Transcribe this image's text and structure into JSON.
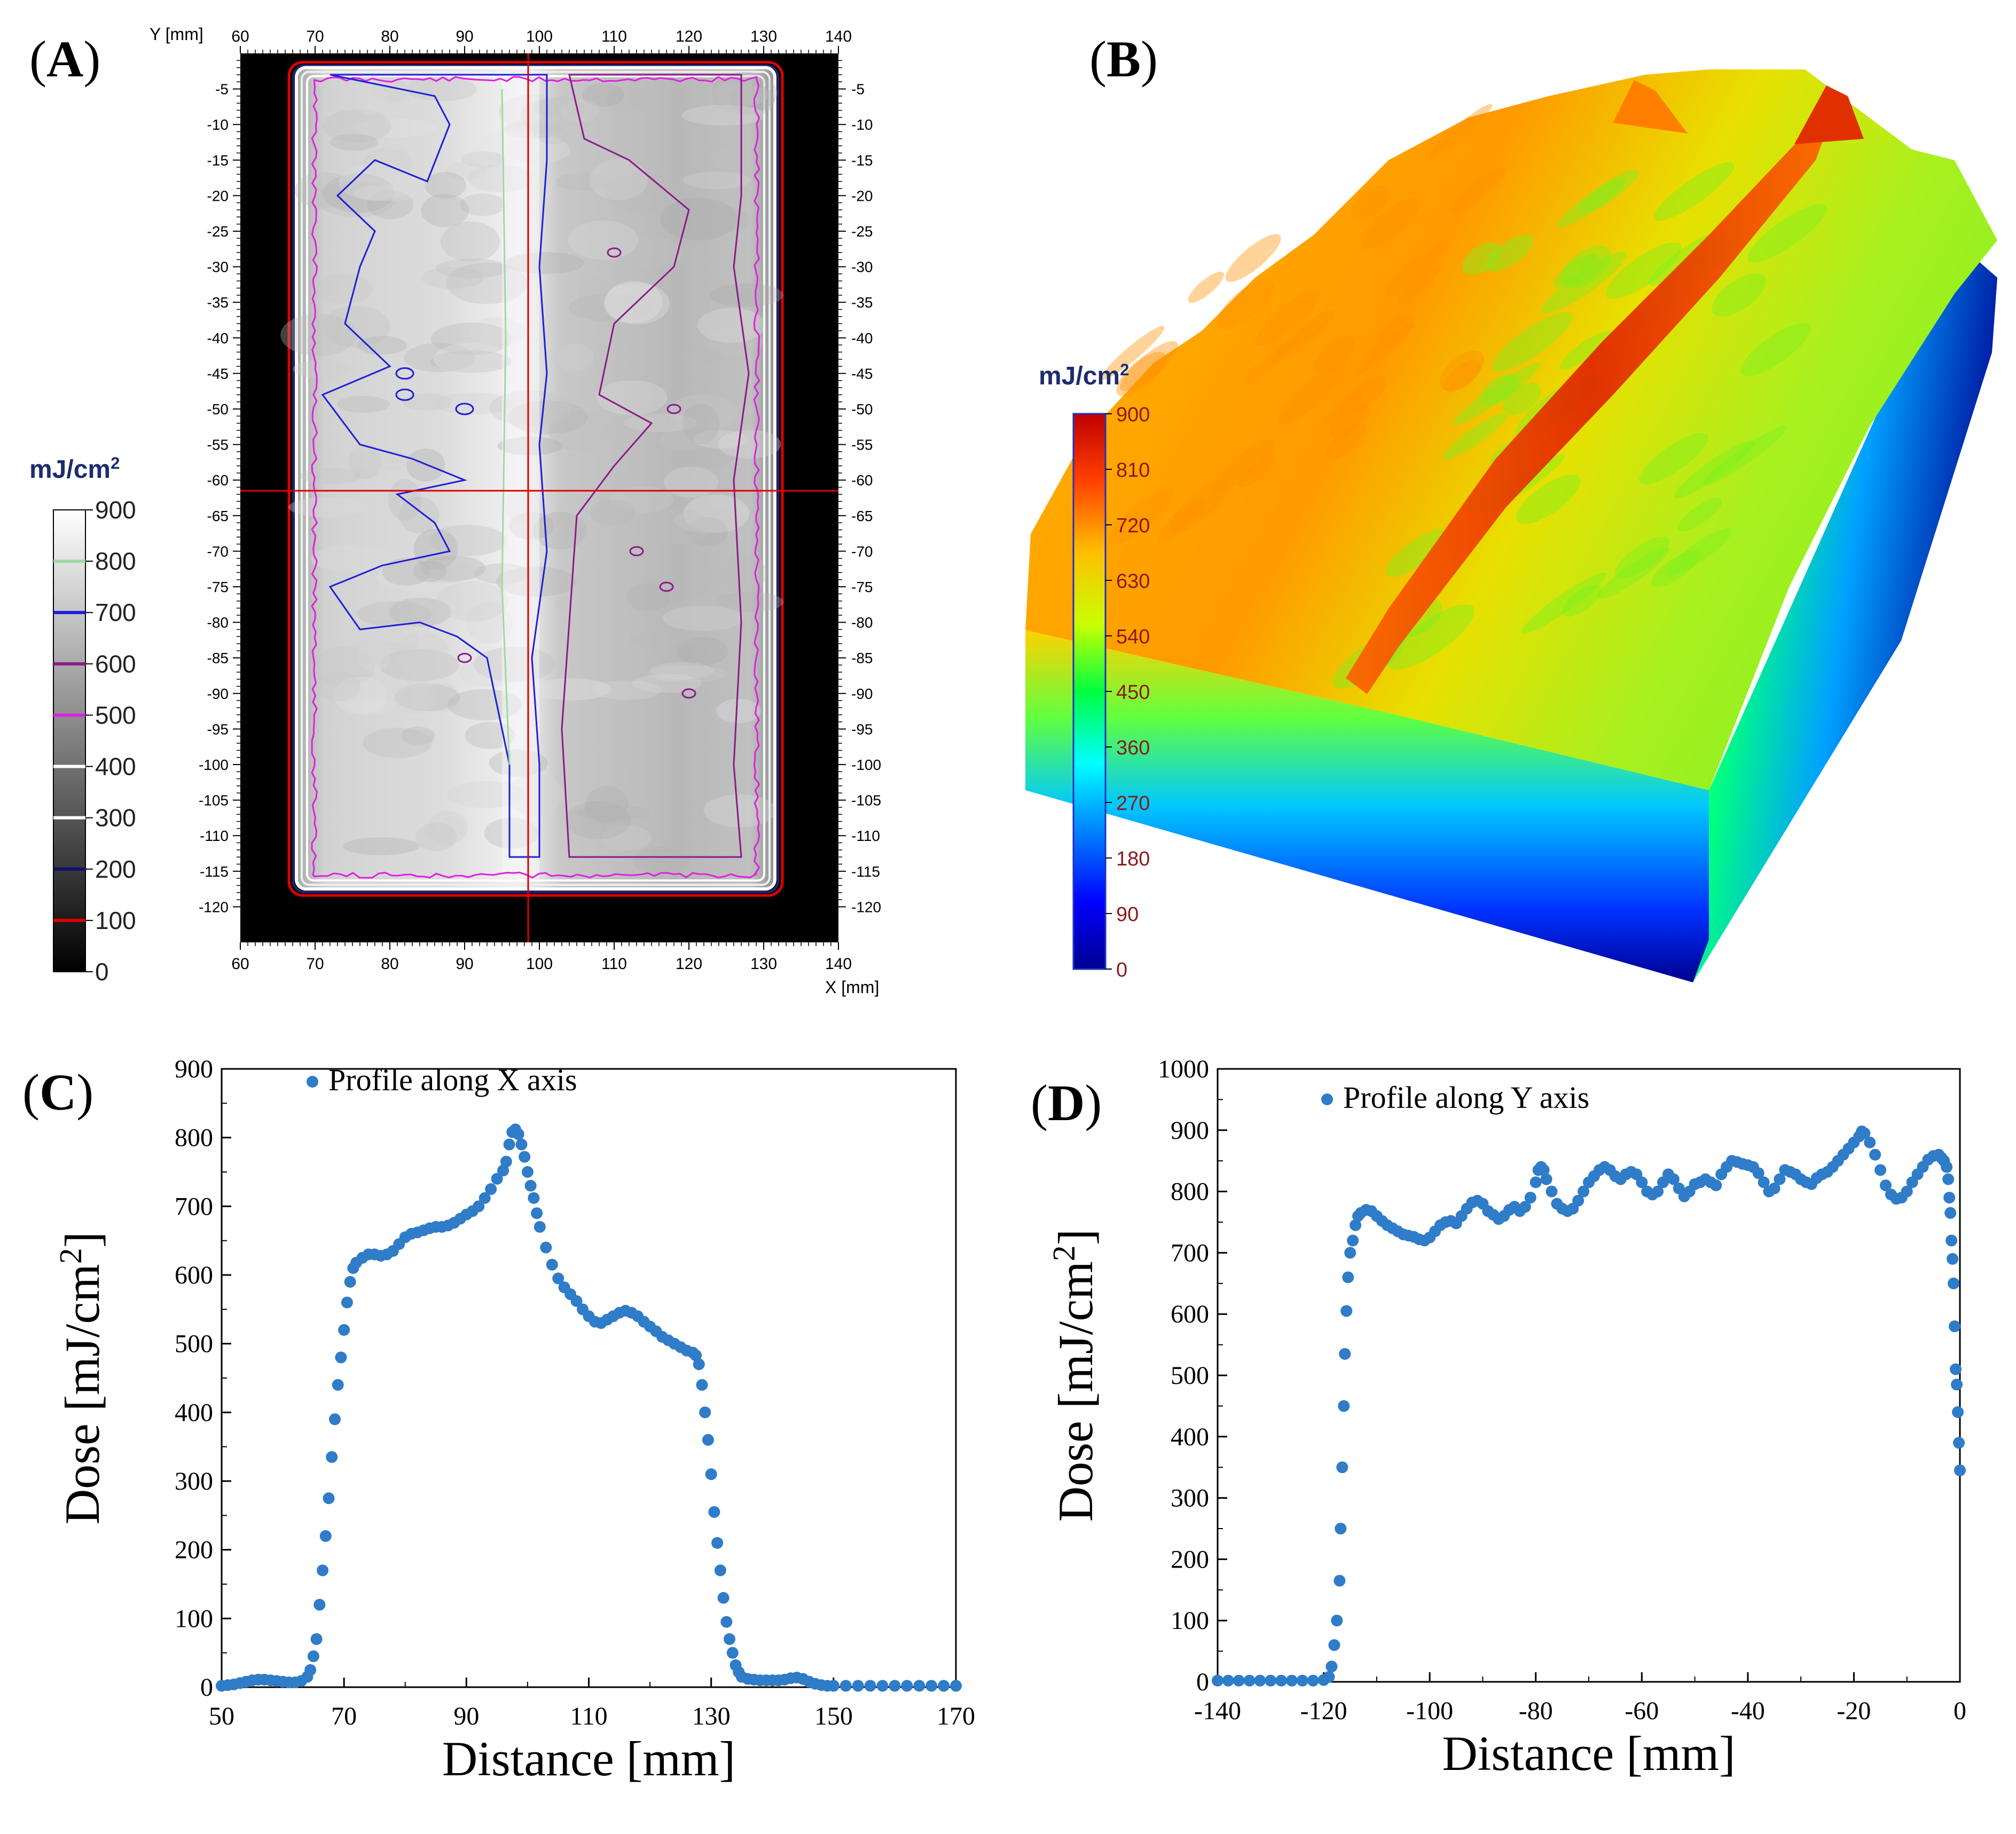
{
  "panel_labels": {
    "a": "A",
    "b": "B",
    "c": "C",
    "d": "D"
  },
  "colors": {
    "marker": "#2F7CC8",
    "contour_blue": "#1E1ED8",
    "contour_purple": "#8B1A8B",
    "contour_magenta": "#E020E0",
    "contour_red": "#E00000",
    "crosshair": "#E00000",
    "unit_label": "#1E2C6E",
    "scale_tick_text": "#8B1A1A"
  },
  "chart_data": [
    {
      "type": "heatmap",
      "panel": "A",
      "description_free": true,
      "y_axis_label": "Y [mm]",
      "x_axis_label": "X [mm]",
      "x_ticks": [
        "60",
        "70",
        "80",
        "90",
        "100",
        "110",
        "120",
        "130",
        "140"
      ],
      "y_ticks": [
        "-5",
        "-10",
        "-15",
        "-20",
        "-25",
        "-30",
        "-35",
        "-40",
        "-45",
        "-50",
        "-55",
        "-60",
        "-65",
        "-70",
        "-75",
        "-80",
        "-85",
        "-90",
        "-95",
        "-100",
        "-105",
        "-110",
        "-115",
        "-120"
      ],
      "xlim": [
        60,
        140
      ],
      "ylim": [
        -125,
        0
      ],
      "field_x": [
        67.5,
        131.5
      ],
      "field_y": [
        -2,
        -117.5
      ],
      "crosshair": {
        "x": 98.5,
        "y": -61.5
      },
      "colorbar": {
        "unit": "mJ/cm²",
        "ticks": [
          "900",
          "800",
          "700",
          "600",
          "500",
          "400",
          "300",
          "200",
          "100",
          "0"
        ],
        "levels": [
          {
            "value": 800,
            "color": "#9fd8a4"
          },
          {
            "value": 700,
            "color": "#1e1ed8"
          },
          {
            "value": 600,
            "color": "#8b1a8b"
          },
          {
            "value": 500,
            "color": "#e020e0"
          },
          {
            "value": 400,
            "color": "#ffffff"
          },
          {
            "value": 300,
            "color": "#ffffff"
          },
          {
            "value": 200,
            "color": "#101070"
          },
          {
            "value": 100,
            "color": "#e00000"
          }
        ]
      }
    },
    {
      "type": "surface",
      "panel": "B",
      "colorbar": {
        "unit": "mJ/cm²",
        "ticks": [
          "900",
          "810",
          "720",
          "630",
          "540",
          "450",
          "360",
          "270",
          "180",
          "90",
          "0"
        ],
        "range": [
          0,
          900
        ]
      }
    },
    {
      "type": "scatter",
      "panel": "C",
      "legend": "Profile along X axis",
      "xlabel": "Distance [mm]",
      "ylabel": "Dose [mJ/cm²]",
      "xlim": [
        50,
        170
      ],
      "ylim": [
        0,
        900
      ],
      "x_ticks": [
        50,
        70,
        90,
        110,
        130,
        150,
        170
      ],
      "y_ticks": [
        0,
        100,
        200,
        300,
        400,
        500,
        600,
        700,
        800,
        900
      ],
      "points": [
        [
          50,
          2
        ],
        [
          51,
          3
        ],
        [
          52,
          4
        ],
        [
          53,
          6
        ],
        [
          54,
          8
        ],
        [
          55,
          10
        ],
        [
          56,
          11
        ],
        [
          57,
          11
        ],
        [
          58,
          10
        ],
        [
          59,
          9
        ],
        [
          60,
          8
        ],
        [
          61,
          7
        ],
        [
          62,
          7
        ],
        [
          63,
          9
        ],
        [
          64,
          15
        ],
        [
          64.5,
          25
        ],
        [
          65,
          45
        ],
        [
          65.5,
          70
        ],
        [
          66,
          120
        ],
        [
          66.5,
          170
        ],
        [
          67,
          220
        ],
        [
          67.5,
          275
        ],
        [
          68,
          335
        ],
        [
          68.5,
          390
        ],
        [
          69,
          440
        ],
        [
          69.5,
          480
        ],
        [
          70,
          520
        ],
        [
          70.5,
          560
        ],
        [
          71,
          590
        ],
        [
          71.5,
          610
        ],
        [
          72,
          618
        ],
        [
          73,
          625
        ],
        [
          74,
          630
        ],
        [
          75,
          630
        ],
        [
          76,
          628
        ],
        [
          77,
          630
        ],
        [
          78,
          635
        ],
        [
          79,
          645
        ],
        [
          80,
          655
        ],
        [
          81,
          660
        ],
        [
          82,
          662
        ],
        [
          83,
          665
        ],
        [
          84,
          668
        ],
        [
          85,
          670
        ],
        [
          86,
          670
        ],
        [
          87,
          672
        ],
        [
          88,
          676
        ],
        [
          89,
          682
        ],
        [
          90,
          688
        ],
        [
          91,
          693
        ],
        [
          92,
          700
        ],
        [
          93,
          712
        ],
        [
          94,
          725
        ],
        [
          95,
          740
        ],
        [
          96,
          752
        ],
        [
          96.5,
          765
        ],
        [
          97,
          790
        ],
        [
          97.5,
          808
        ],
        [
          98,
          812
        ],
        [
          98.5,
          805
        ],
        [
          99,
          790
        ],
        [
          99.5,
          772
        ],
        [
          100,
          750
        ],
        [
          100.5,
          730
        ],
        [
          101,
          712
        ],
        [
          101.5,
          690
        ],
        [
          102,
          670
        ],
        [
          103,
          640
        ],
        [
          104,
          615
        ],
        [
          105,
          595
        ],
        [
          106,
          582
        ],
        [
          107,
          572
        ],
        [
          108,
          562
        ],
        [
          109,
          550
        ],
        [
          110,
          540
        ],
        [
          111,
          532
        ],
        [
          112,
          530
        ],
        [
          113,
          535
        ],
        [
          114,
          540
        ],
        [
          115,
          545
        ],
        [
          116,
          548
        ],
        [
          117,
          545
        ],
        [
          118,
          540
        ],
        [
          119,
          532
        ],
        [
          120,
          525
        ],
        [
          121,
          518
        ],
        [
          122,
          510
        ],
        [
          123,
          505
        ],
        [
          124,
          500
        ],
        [
          125,
          495
        ],
        [
          126,
          490
        ],
        [
          127,
          487
        ],
        [
          127.5,
          483
        ],
        [
          128,
          470
        ],
        [
          128.5,
          440
        ],
        [
          129,
          400
        ],
        [
          129.5,
          360
        ],
        [
          130,
          310
        ],
        [
          130.5,
          255
        ],
        [
          131,
          210
        ],
        [
          131.5,
          170
        ],
        [
          132,
          130
        ],
        [
          132.5,
          95
        ],
        [
          133,
          70
        ],
        [
          133.5,
          50
        ],
        [
          134,
          32
        ],
        [
          134.5,
          22
        ],
        [
          135,
          15
        ],
        [
          136,
          12
        ],
        [
          137,
          11
        ],
        [
          138,
          10
        ],
        [
          139,
          10
        ],
        [
          140,
          10
        ],
        [
          141,
          10
        ],
        [
          142,
          11
        ],
        [
          143,
          13
        ],
        [
          144,
          14
        ],
        [
          145,
          12
        ],
        [
          146,
          8
        ],
        [
          147,
          5
        ],
        [
          148,
          3
        ],
        [
          149,
          2
        ],
        [
          150,
          2
        ],
        [
          152,
          2
        ],
        [
          154,
          2
        ],
        [
          156,
          2
        ],
        [
          158,
          2
        ],
        [
          160,
          2
        ],
        [
          162,
          2
        ],
        [
          164,
          2
        ],
        [
          166,
          2
        ],
        [
          168,
          2
        ],
        [
          170,
          2
        ]
      ]
    },
    {
      "type": "scatter",
      "panel": "D",
      "legend": "Profile along Y axis",
      "xlabel": "Distance [mm]",
      "ylabel": "Dose [mJ/cm²]",
      "xlim": [
        -140,
        0
      ],
      "ylim": [
        0,
        1000
      ],
      "x_ticks": [
        -140,
        -120,
        -100,
        -80,
        -60,
        -40,
        -20,
        0
      ],
      "y_ticks": [
        0,
        100,
        200,
        300,
        400,
        500,
        600,
        700,
        800,
        900,
        1000
      ],
      "points": [
        [
          -140,
          2
        ],
        [
          -138,
          2
        ],
        [
          -136,
          2
        ],
        [
          -134,
          2
        ],
        [
          -132,
          2
        ],
        [
          -130,
          2
        ],
        [
          -128,
          2
        ],
        [
          -126,
          2
        ],
        [
          -124,
          2
        ],
        [
          -122,
          2
        ],
        [
          -120,
          3
        ],
        [
          -119,
          8
        ],
        [
          -118.5,
          25
        ],
        [
          -118,
          60
        ],
        [
          -117.5,
          100
        ],
        [
          -117,
          165
        ],
        [
          -116.8,
          250
        ],
        [
          -116.5,
          350
        ],
        [
          -116.2,
          450
        ],
        [
          -116,
          535
        ],
        [
          -115.7,
          605
        ],
        [
          -115.4,
          660
        ],
        [
          -115,
          700
        ],
        [
          -114.5,
          720
        ],
        [
          -114,
          745
        ],
        [
          -113.5,
          760
        ],
        [
          -113,
          765
        ],
        [
          -112,
          770
        ],
        [
          -111,
          768
        ],
        [
          -110,
          760
        ],
        [
          -109,
          752
        ],
        [
          -108,
          745
        ],
        [
          -107,
          740
        ],
        [
          -106,
          735
        ],
        [
          -105,
          730
        ],
        [
          -104,
          728
        ],
        [
          -103,
          726
        ],
        [
          -102,
          722
        ],
        [
          -101,
          720
        ],
        [
          -100,
          725
        ],
        [
          -99,
          735
        ],
        [
          -98,
          745
        ],
        [
          -97,
          750
        ],
        [
          -96,
          752
        ],
        [
          -95,
          748
        ],
        [
          -94,
          760
        ],
        [
          -93,
          772
        ],
        [
          -92,
          782
        ],
        [
          -91,
          785
        ],
        [
          -90,
          780
        ],
        [
          -89,
          768
        ],
        [
          -88,
          762
        ],
        [
          -87,
          755
        ],
        [
          -86,
          760
        ],
        [
          -85,
          770
        ],
        [
          -84,
          775
        ],
        [
          -83,
          768
        ],
        [
          -82,
          775
        ],
        [
          -81,
          790
        ],
        [
          -80,
          815
        ],
        [
          -79.5,
          835
        ],
        [
          -79,
          840
        ],
        [
          -78.5,
          835
        ],
        [
          -78,
          820
        ],
        [
          -77,
          800
        ],
        [
          -76,
          780
        ],
        [
          -75,
          772
        ],
        [
          -74,
          768
        ],
        [
          -73,
          772
        ],
        [
          -72,
          785
        ],
        [
          -71,
          800
        ],
        [
          -70,
          815
        ],
        [
          -69,
          825
        ],
        [
          -68,
          835
        ],
        [
          -67,
          840
        ],
        [
          -66,
          835
        ],
        [
          -65,
          825
        ],
        [
          -64,
          820
        ],
        [
          -63,
          828
        ],
        [
          -62,
          832
        ],
        [
          -61,
          828
        ],
        [
          -60,
          815
        ],
        [
          -59,
          800
        ],
        [
          -58,
          795
        ],
        [
          -57,
          800
        ],
        [
          -56,
          815
        ],
        [
          -55,
          828
        ],
        [
          -54,
          820
        ],
        [
          -53,
          805
        ],
        [
          -52,
          792
        ],
        [
          -51,
          800
        ],
        [
          -50,
          812
        ],
        [
          -49,
          815
        ],
        [
          -48,
          820
        ],
        [
          -47,
          815
        ],
        [
          -46,
          810
        ],
        [
          -45,
          828
        ],
        [
          -44,
          840
        ],
        [
          -43,
          850
        ],
        [
          -42,
          848
        ],
        [
          -41,
          845
        ],
        [
          -40,
          843
        ],
        [
          -39,
          840
        ],
        [
          -38,
          830
        ],
        [
          -37,
          815
        ],
        [
          -36,
          800
        ],
        [
          -35,
          805
        ],
        [
          -34,
          820
        ],
        [
          -33,
          835
        ],
        [
          -32,
          832
        ],
        [
          -31,
          828
        ],
        [
          -30,
          820
        ],
        [
          -29,
          815
        ],
        [
          -28,
          812
        ],
        [
          -27,
          822
        ],
        [
          -26,
          828
        ],
        [
          -25,
          832
        ],
        [
          -24,
          840
        ],
        [
          -23,
          850
        ],
        [
          -22,
          860
        ],
        [
          -21,
          870
        ],
        [
          -20,
          880
        ],
        [
          -19,
          890
        ],
        [
          -18.5,
          898
        ],
        [
          -18,
          895
        ],
        [
          -17,
          880
        ],
        [
          -16,
          860
        ],
        [
          -15,
          835
        ],
        [
          -14,
          810
        ],
        [
          -13,
          795
        ],
        [
          -12,
          788
        ],
        [
          -11,
          790
        ],
        [
          -10,
          800
        ],
        [
          -9,
          815
        ],
        [
          -8,
          828
        ],
        [
          -7,
          840
        ],
        [
          -6,
          852
        ],
        [
          -5,
          858
        ],
        [
          -4,
          860
        ],
        [
          -3.5,
          855
        ],
        [
          -3,
          850
        ],
        [
          -2.5,
          840
        ],
        [
          -2.2,
          820
        ],
        [
          -2,
          790
        ],
        [
          -1.8,
          765
        ],
        [
          -1.6,
          720
        ],
        [
          -1.4,
          690
        ],
        [
          -1.2,
          650
        ],
        [
          -1,
          580
        ],
        [
          -0.8,
          510
        ],
        [
          -0.6,
          485
        ],
        [
          -0.4,
          440
        ],
        [
          -0.2,
          390
        ],
        [
          0,
          345
        ]
      ]
    }
  ]
}
